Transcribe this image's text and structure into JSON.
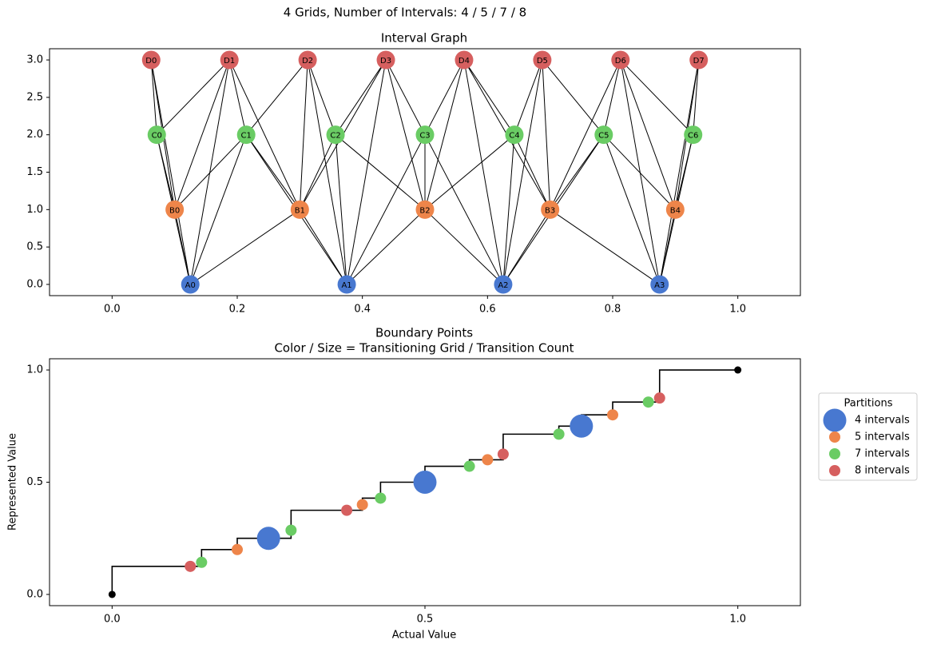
{
  "title": "4 Grids, Number of Intervals: 4 / 5 / 7 / 8",
  "chart_data": [
    {
      "type": "graph",
      "title": "Interval Graph",
      "xlim": [
        -0.1,
        1.1
      ],
      "xticks": [
        {
          "value": 0,
          "label": "0.0"
        },
        {
          "value": 0.2,
          "label": "0.2"
        },
        {
          "value": 0.4,
          "label": "0.4"
        },
        {
          "value": 0.6,
          "label": "0.6"
        },
        {
          "value": 0.8,
          "label": "0.8"
        },
        {
          "value": 1,
          "label": "1.0"
        }
      ],
      "ylim": [
        -0.15,
        3.15
      ],
      "yticks": [
        {
          "value": 0,
          "label": "0.0"
        },
        {
          "value": 0.5,
          "label": "0.5"
        },
        {
          "value": 1,
          "label": "1.0"
        },
        {
          "value": 1.5,
          "label": "1.5"
        },
        {
          "value": 2,
          "label": "2.0"
        },
        {
          "value": 2.5,
          "label": "2.5"
        },
        {
          "value": 3,
          "label": "3.0"
        }
      ],
      "nodes": [
        {
          "color": "#4878d0",
          "labels": [
            "A0",
            "A1",
            "A2",
            "A3"
          ],
          "x": [
            0.125,
            0.375,
            0.625,
            0.875
          ],
          "y": [
            0,
            0,
            0,
            0
          ]
        },
        {
          "color": "#ee854a",
          "labels": [
            "B0",
            "B1",
            "B2",
            "B3",
            "B4"
          ],
          "x": [
            0.1,
            0.3,
            0.5,
            0.7,
            0.9
          ],
          "y": [
            1,
            1,
            1,
            1,
            1
          ]
        },
        {
          "color": "#6acc64",
          "labels": [
            "C0",
            "C1",
            "C2",
            "C3",
            "C4",
            "C5",
            "C6"
          ],
          "x": [
            0.0714,
            0.2143,
            0.3571,
            0.5,
            0.6429,
            0.7857,
            0.9286
          ],
          "y": [
            2,
            2,
            2,
            2,
            2,
            2,
            2
          ]
        },
        {
          "color": "#d65f5f",
          "labels": [
            "D0",
            "D1",
            "D2",
            "D3",
            "D4",
            "D5",
            "D6",
            "D7"
          ],
          "x": [
            0.0625,
            0.1875,
            0.3125,
            0.4375,
            0.5625,
            0.6875,
            0.8125,
            0.9375
          ],
          "y": [
            3,
            3,
            3,
            3,
            3,
            3,
            3,
            3
          ]
        }
      ]
    },
    {
      "type": "scatter",
      "title": "Boundary Points",
      "subtitle": "Color / Size = Transitioning Grid / Transition Count",
      "xlabel": "Actual Value",
      "ylabel": "Represented Value",
      "xlim": [
        -0.1,
        1.1
      ],
      "xticks": [
        {
          "value": 0,
          "label": "0.0"
        },
        {
          "value": 0.5,
          "label": "0.5"
        },
        {
          "value": 1,
          "label": "1.0"
        }
      ],
      "ylim": [
        -0.05,
        1.05
      ],
      "yticks": [
        {
          "value": 0,
          "label": "0.0"
        },
        {
          "value": 0.5,
          "label": "0.5"
        },
        {
          "value": 1,
          "label": "1.0"
        }
      ],
      "line": {
        "color": "#000000",
        "x": [
          0,
          0.143,
          0.2,
          0.286,
          0.4,
          0.429,
          0.5,
          0.571,
          0.625,
          0.714,
          0.75,
          0.8,
          0.875,
          1
        ],
        "y": [
          0.125,
          0.2,
          0.25,
          0.375,
          0.429,
          0.5,
          0.571,
          0.6,
          0.714,
          0.75,
          0.8,
          0.857,
          1,
          1
        ]
      },
      "endpoints": {
        "color": "#000000",
        "x": [
          0,
          1
        ],
        "y": [
          0,
          1
        ]
      },
      "legend_title": "Partitions",
      "legend": "outside right",
      "series": [
        {
          "name": "4 intervals",
          "color": "#4878d0",
          "x": [
            0.25,
            0.5,
            0.75
          ],
          "y": [
            0.25,
            0.5,
            0.75
          ],
          "sizes": [
            2,
            2,
            2
          ]
        },
        {
          "name": "5 intervals",
          "color": "#ee854a",
          "x": [
            0.2,
            0.4,
            0.6,
            0.8
          ],
          "y": [
            0.2,
            0.4,
            0.6,
            0.8
          ],
          "sizes": [
            1,
            1,
            1,
            1
          ]
        },
        {
          "name": "7 intervals",
          "color": "#6acc64",
          "x": [
            0.143,
            0.286,
            0.429,
            0.571,
            0.714,
            0.857
          ],
          "y": [
            0.143,
            0.286,
            0.429,
            0.571,
            0.714,
            0.857
          ],
          "sizes": [
            1,
            1,
            1,
            1,
            1,
            1
          ]
        },
        {
          "name": "8 intervals",
          "color": "#d65f5f",
          "x": [
            0.125,
            0.375,
            0.625,
            0.875
          ],
          "y": [
            0.125,
            0.375,
            0.625,
            0.875
          ],
          "sizes": [
            1,
            1,
            1,
            1
          ]
        }
      ]
    }
  ]
}
